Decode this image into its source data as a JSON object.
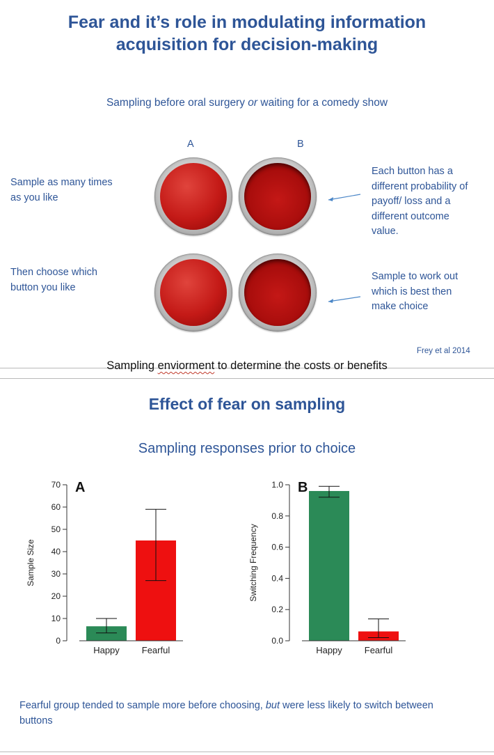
{
  "slide1": {
    "title_line1": "Fear and it’s role in modulating information",
    "title_line2": "acquisition for decision-making",
    "subtitle_pre": "Sampling before oral surgery ",
    "subtitle_or": "or",
    "subtitle_post": " waiting for a comedy show",
    "col_a": "A",
    "col_b": "B",
    "left_text_1_line1": "Sample as many times",
    "left_text_1_line2": "as you like",
    "left_text_2_line1": "Then choose which",
    "left_text_2_line2": "button you like",
    "right_text_1": [
      "Each button has a",
      "different probability of",
      "payoff/ loss and a",
      "different outcome",
      "value."
    ],
    "right_text_2": [
      "Sample to work out",
      "which is best then",
      "make choice"
    ],
    "credit": "Frey et al 2014"
  },
  "caption_pre": "Sampling ",
  "caption_misspelled": "enviorment",
  "caption_post": " to determine the costs or benefits",
  "slide2": {
    "title": "Effect of fear on sampling",
    "subtitle": "Sampling responses prior to choice",
    "footer_pre": "Fearful group tended to sample more before choosing, ",
    "footer_but": "but",
    "footer_post": " were less likely to switch between buttons"
  },
  "chart_data": [
    {
      "type": "bar",
      "panel_label": "A",
      "ylabel": "Sample Size",
      "categories": [
        "Happy",
        "Fearful"
      ],
      "values": [
        6.5,
        45
      ],
      "error_low": [
        3.5,
        27
      ],
      "error_high": [
        10,
        59
      ],
      "colors": [
        "#2b8a57",
        "#ee1010"
      ],
      "ylim": [
        0,
        70
      ],
      "yticks": [
        0,
        10,
        20,
        30,
        40,
        50,
        60,
        70
      ],
      "ytick_labels": [
        "0",
        "10",
        "20",
        "30",
        "40",
        "50",
        "60",
        "70"
      ]
    },
    {
      "type": "bar",
      "panel_label": "B",
      "ylabel": "Switching Frequency",
      "categories": [
        "Happy",
        "Fearful"
      ],
      "values": [
        0.96,
        0.06
      ],
      "error_low": [
        0.92,
        0.02
      ],
      "error_high": [
        0.99,
        0.14
      ],
      "colors": [
        "#2b8a57",
        "#ee1010"
      ],
      "ylim": [
        0,
        1.0
      ],
      "yticks": [
        0,
        0.2,
        0.4,
        0.6,
        0.8,
        1.0
      ],
      "ytick_labels": [
        "0.0",
        "0.2",
        "0.4",
        "0.6",
        "0.8",
        "1.0"
      ]
    }
  ]
}
